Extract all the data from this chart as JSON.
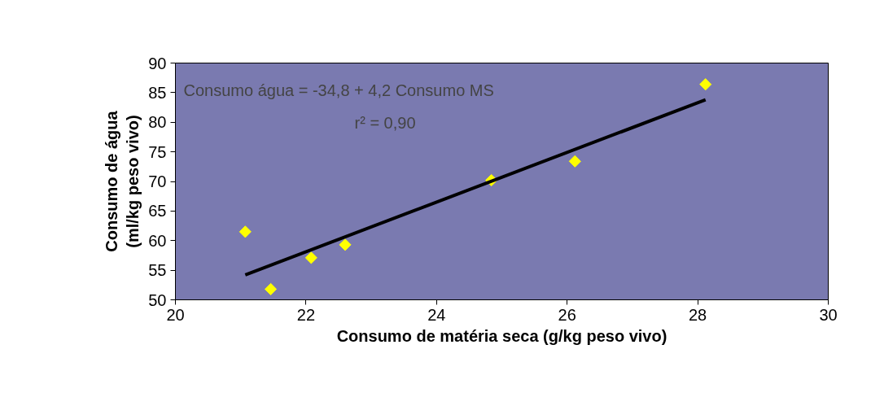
{
  "chart_data": {
    "type": "scatter",
    "xlabel": "Consumo de matéria seca (g/kg peso vivo)",
    "ylabel": "Consumo de água\n(ml/kg peso vivo)",
    "annotations": [
      "Consumo água = -34,8 + 4,2 Consumo MS",
      "r² = 0,90"
    ],
    "xlim": [
      20,
      30
    ],
    "xticks": [
      20,
      22,
      24,
      26,
      28,
      30
    ],
    "ylim": [
      50,
      90
    ],
    "yticks": [
      50,
      55,
      60,
      65,
      70,
      75,
      80,
      85,
      90
    ],
    "grid": false,
    "series": [
      {
        "marker": "diamond",
        "color": "#ffff00",
        "x": [
          21.07,
          21.46,
          22.08,
          22.6,
          24.84,
          26.12,
          28.12
        ],
        "values": [
          61.5,
          51.8,
          57.1,
          59.3,
          70.2,
          73.4,
          86.4
        ]
      },
      {
        "type": "line",
        "color": "#000000",
        "x": [
          21.07,
          28.12
        ],
        "values": [
          54.2,
          83.8
        ],
        "line_style": "solid"
      }
    ]
  }
}
